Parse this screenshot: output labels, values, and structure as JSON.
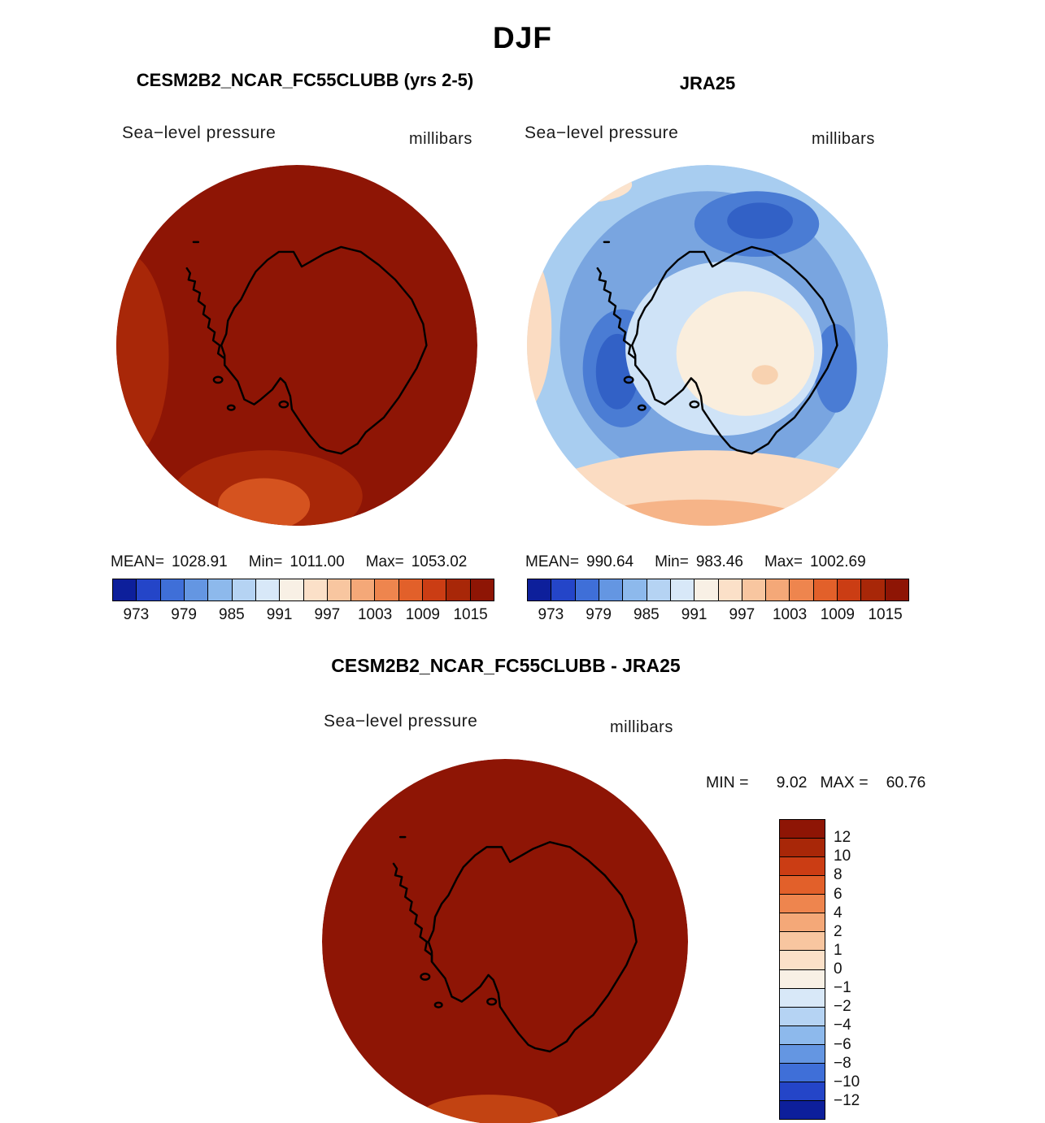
{
  "page_title": "DJF",
  "panels": {
    "model": {
      "title": "CESM2B2_NCAR_FC55CLUBB (yrs 2-5)",
      "field_label": "Sea−level pressure",
      "units_label": "millibars",
      "stats": {
        "mean_label": "MEAN=",
        "mean": "1028.91",
        "min_label": "Min=",
        "min": "1011.00",
        "max_label": "Max=",
        "max": "1053.02"
      }
    },
    "reference": {
      "title": "JRA25",
      "field_label": "Sea−level pressure",
      "units_label": "millibars",
      "stats": {
        "mean_label": "MEAN=",
        "mean": "990.64",
        "min_label": "Min=",
        "min": "983.46",
        "max_label": "Max=",
        "max": "1002.69"
      }
    },
    "difference": {
      "title": "CESM2B2_NCAR_FC55CLUBB - JRA25",
      "field_label": "Sea−level pressure",
      "units_label": "millibars",
      "stats": {
        "min_label": "MIN =",
        "min": "9.02",
        "max_label": "MAX =",
        "max": "60.76"
      }
    }
  },
  "colorbar": {
    "orientation": "h",
    "colors": [
      "#0d1f9b",
      "#2445c8",
      "#3f6fd8",
      "#6496e2",
      "#8db9ec",
      "#b5d3f3",
      "#d8e8f8",
      "#f8f0e5",
      "#fbe0c8",
      "#f8c6a0",
      "#f4a878",
      "#ee854e",
      "#e2602a",
      "#cb3d14",
      "#a82708",
      "#8e1505"
    ],
    "tick_labels": [
      "973",
      "979",
      "985",
      "991",
      "997",
      "1003",
      "1009",
      "1015"
    ],
    "tick_boundaries": [
      1,
      3,
      5,
      7,
      9,
      11,
      13,
      15
    ]
  },
  "diff_colorbar": {
    "orientation": "v",
    "colors": [
      "#8e1505",
      "#a82708",
      "#cb3d14",
      "#e2602a",
      "#ee854e",
      "#f4a878",
      "#f8c6a0",
      "#fbe0c8",
      "#f8f0e5",
      "#d8e8f8",
      "#b5d3f3",
      "#8db9ec",
      "#6496e2",
      "#3f6fd8",
      "#2445c8",
      "#0d1f9b"
    ],
    "tick_labels": [
      "12",
      "10",
      "8",
      "6",
      "4",
      "2",
      "1",
      "0",
      "−1",
      "−2",
      "−4",
      "−6",
      "−8",
      "−10",
      "−12"
    ],
    "tick_boundaries": [
      1,
      2,
      3,
      4,
      5,
      6,
      7,
      8,
      9,
      10,
      11,
      12,
      13,
      14,
      15
    ]
  },
  "chart_data": [
    {
      "type": "heatmap",
      "subtype": "filled-contour polar stereographic map",
      "title": "CESM2B2_NCAR_FC55CLUBB (yrs 2-5)",
      "season": "DJF",
      "variable": "Sea-level pressure",
      "units": "millibars",
      "region": "Antarctica / South polar cap",
      "stats": {
        "mean": 1028.91,
        "min": 1011.0,
        "max": 1053.02
      },
      "contour_levels": [
        973,
        976,
        979,
        982,
        985,
        988,
        991,
        994,
        997,
        1000,
        1003,
        1006,
        1009,
        1012,
        1015
      ],
      "labeled_levels": [
        973,
        979,
        985,
        991,
        997,
        1003,
        1009,
        1015
      ],
      "pattern": "Nearly the entire domain exceeds the top contour (>1015 mb, dark red); slightly lower values (1009-1015 mb) along the western rim and lower-left, with an orange patch (~1003-1009 mb) near the bottom edge."
    },
    {
      "type": "heatmap",
      "subtype": "filled-contour polar stereographic map",
      "title": "JRA25",
      "season": "DJF",
      "variable": "Sea-level pressure",
      "units": "millibars",
      "region": "Antarctica / South polar cap",
      "stats": {
        "mean": 990.64,
        "min": 983.46,
        "max": 1002.69
      },
      "contour_levels": [
        973,
        976,
        979,
        982,
        985,
        988,
        991,
        994,
        997,
        1000,
        1003,
        1006,
        1009,
        1012,
        1015
      ],
      "labeled_levels": [
        973,
        979,
        985,
        991,
        997,
        1003,
        1009,
        1015
      ],
      "pattern": "Circumpolar low-pressure belt (982-991 mb, blues) with deeper cells (~979-985 mb, dark blue) north of the Ross Sea, over the Amundsen-Bellingshausen Seas and east of the continent; higher pressure (994-1003 mb, cream/peach) over the East Antarctic interior and along the outer (lower-latitude) rim."
    },
    {
      "type": "heatmap",
      "subtype": "difference map (model minus reanalysis)",
      "title": "CESM2B2_NCAR_FC55CLUBB - JRA25",
      "season": "DJF",
      "variable": "Sea-level pressure",
      "units": "millibars",
      "region": "Antarctica / South polar cap",
      "stats": {
        "min": 9.02,
        "max": 60.76
      },
      "contour_levels": [
        -12,
        -10,
        -8,
        -6,
        -4,
        -2,
        -1,
        0,
        1,
        2,
        4,
        6,
        8,
        10,
        12
      ],
      "pattern": "Entire domain above the top contour (>+12 mb, dark red), i.e. the model is biased high everywhere; a small patch of slightly smaller positive differences near the bottom edge."
    }
  ]
}
